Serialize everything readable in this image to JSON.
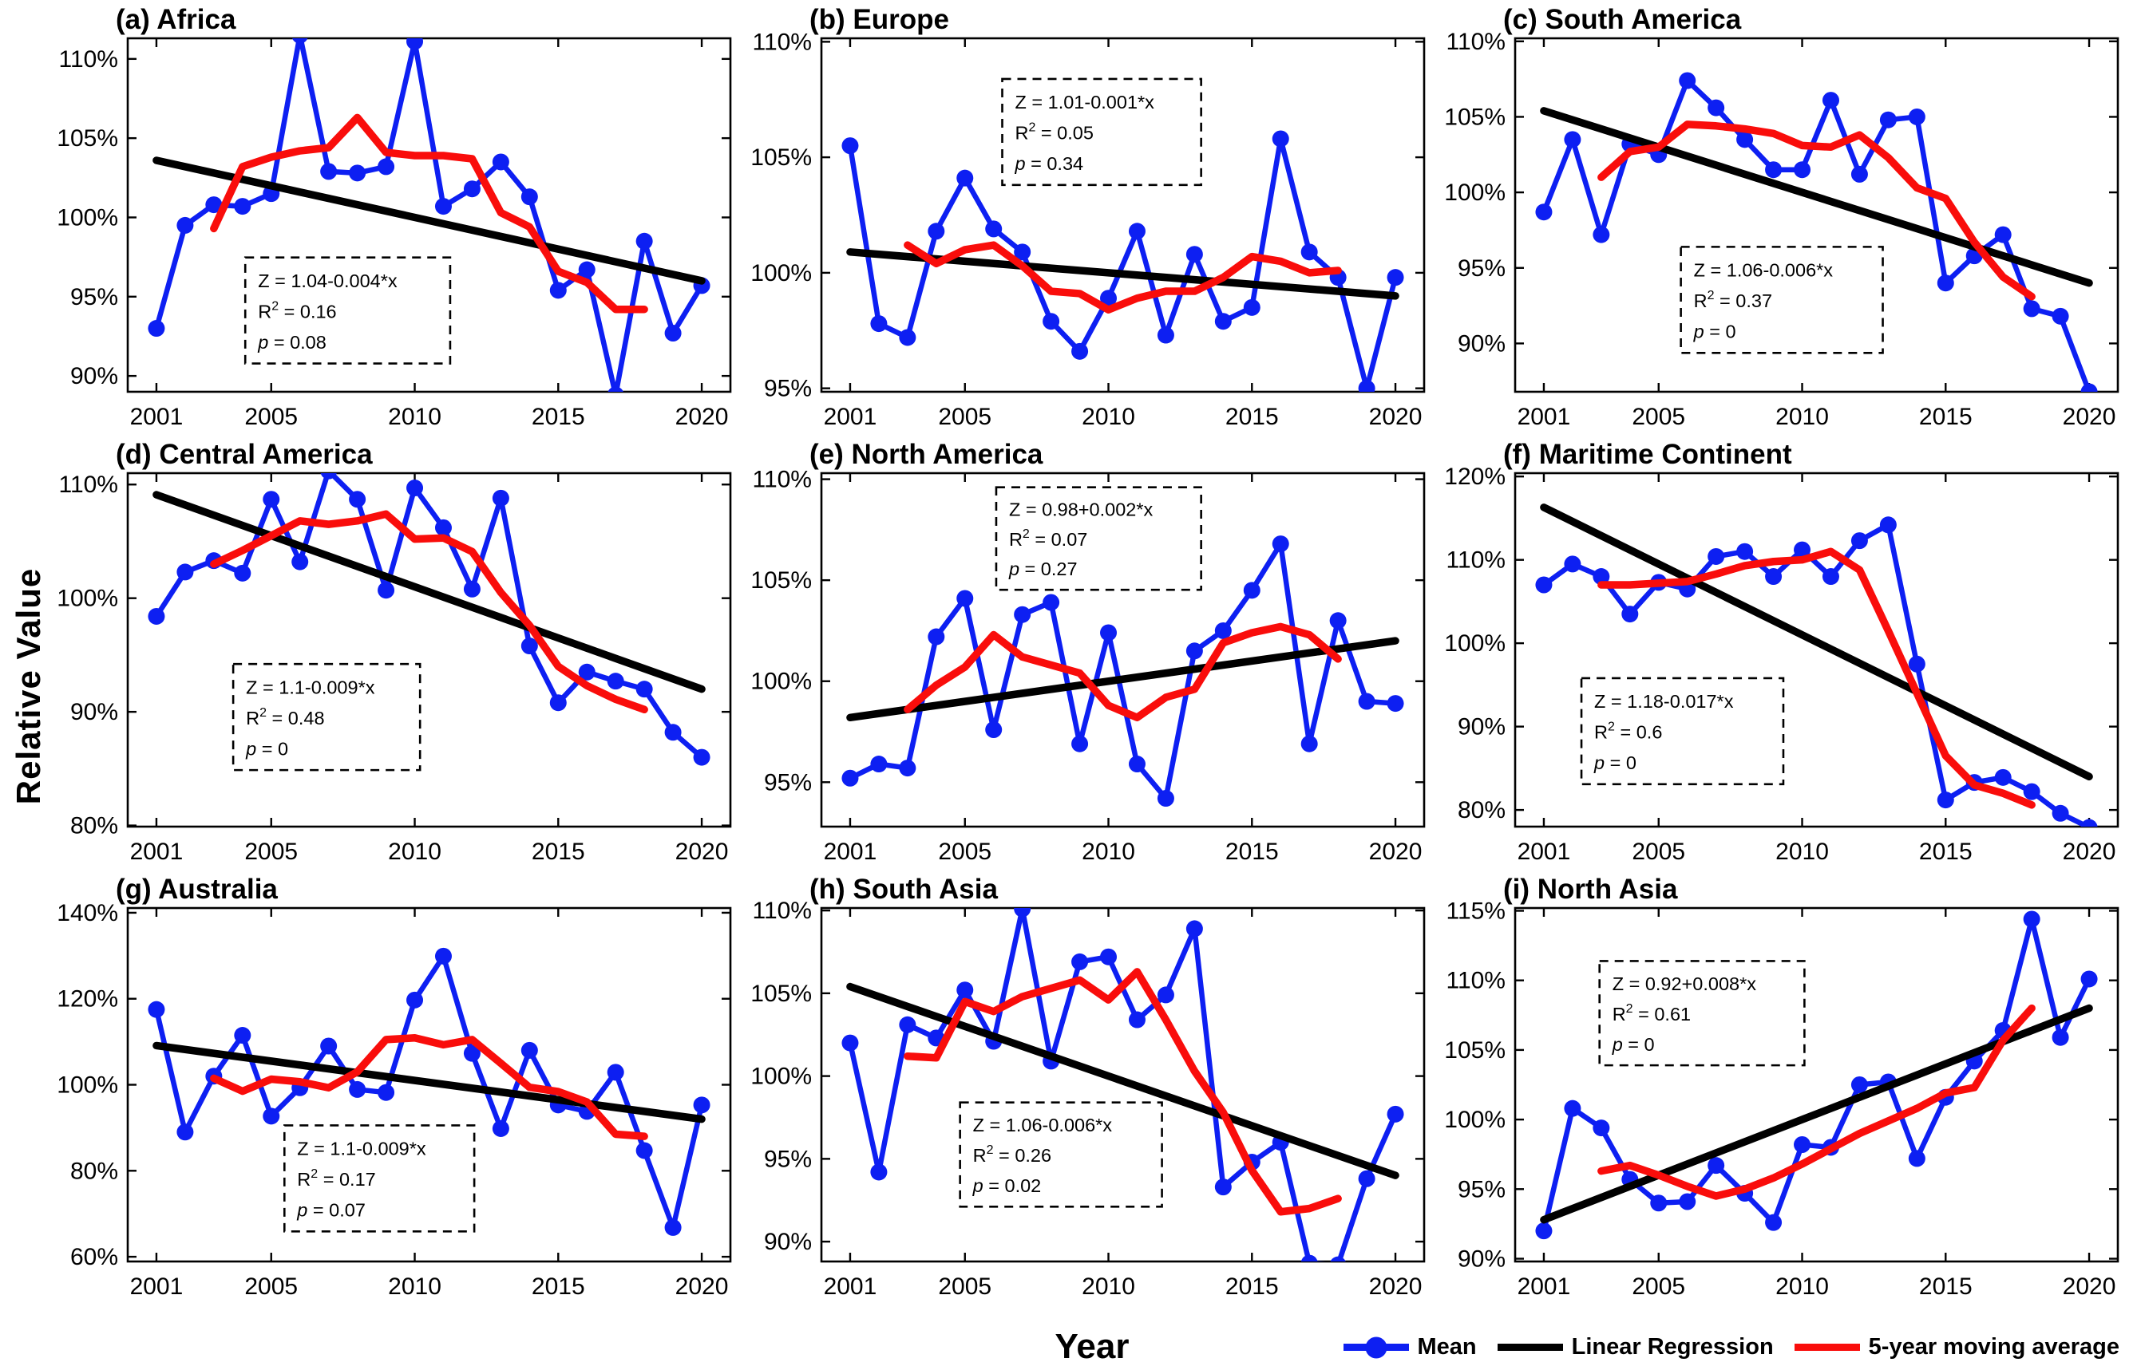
{
  "figure": {
    "ylabel": "Relative Value",
    "xlabel": "Year",
    "colors": {
      "mean": "#0d1ff2",
      "regression": "#000000",
      "moving_average": "#f90d0b"
    },
    "legend": [
      {
        "name": "mean",
        "label": "Mean"
      },
      {
        "name": "linear-regression",
        "label": "Linear Regression"
      },
      {
        "name": "moving-average",
        "label": "5-year moving average"
      }
    ]
  },
  "chart_data": {
    "type": "line",
    "x": [
      2001,
      2002,
      2003,
      2004,
      2005,
      2006,
      2007,
      2008,
      2009,
      2010,
      2011,
      2012,
      2013,
      2014,
      2015,
      2016,
      2017,
      2018,
      2019,
      2020
    ],
    "xticks": [
      2001,
      2005,
      2010,
      2015,
      2020
    ],
    "xlim": [
      2000,
      2021
    ],
    "ma_start_year": 2003,
    "grid": "off",
    "panels": [
      {
        "id": "a",
        "title": "(a) Africa",
        "ylim": [
          89.0,
          111.3
        ],
        "yticks": [
          90,
          95,
          100,
          105,
          110
        ],
        "mean": [
          93.0,
          99.5,
          100.8,
          100.7,
          101.5,
          111.5,
          102.9,
          102.8,
          103.2,
          111.1,
          100.7,
          101.8,
          103.5,
          101.3,
          95.4,
          96.7,
          88.8,
          98.5,
          92.7,
          95.7
        ],
        "moving_average": [
          99.3,
          103.2,
          103.8,
          104.2,
          104.4,
          106.3,
          104.1,
          103.9,
          103.9,
          103.7,
          100.3,
          99.4,
          96.6,
          95.9,
          94.2,
          94.2
        ],
        "regression": {
          "intercept": 1.04,
          "slope": -0.004
        },
        "annotation": {
          "equation": "Z = 1.04-0.004*x",
          "r2": "0.16",
          "p": "0.08",
          "box": {
            "left_pct": 19.5,
            "top_pct": 62,
            "width_pct": 34,
            "height_pct": 30
          }
        }
      },
      {
        "id": "b",
        "title": "(b) Europe",
        "ylim": [
          94.85,
          110.15
        ],
        "yticks": [
          95,
          100,
          105,
          110
        ],
        "mean": [
          105.5,
          97.8,
          97.2,
          101.8,
          104.1,
          101.9,
          100.9,
          97.9,
          96.6,
          98.9,
          101.8,
          97.3,
          100.8,
          97.9,
          98.5,
          105.8,
          100.9,
          99.8,
          95.0,
          99.8
        ],
        "moving_average": [
          101.2,
          100.4,
          101.0,
          101.2,
          100.3,
          99.2,
          99.1,
          98.4,
          98.9,
          99.2,
          99.2,
          99.8,
          100.7,
          100.5,
          100.0,
          100.1
        ],
        "regression": {
          "intercept": 1.01,
          "slope": -0.001
        },
        "annotation": {
          "equation": "Z = 1.01-0.001*x",
          "r2": "0.05",
          "p": "0.34",
          "box": {
            "left_pct": 30,
            "top_pct": 11.5,
            "width_pct": 33,
            "height_pct": 30
          }
        }
      },
      {
        "id": "c",
        "title": "(c) South America",
        "ylim": [
          86.8,
          110.2
        ],
        "yticks": [
          90,
          95,
          100,
          105,
          110
        ],
        "mean": [
          98.7,
          103.5,
          97.2,
          103.2,
          102.5,
          107.4,
          105.6,
          103.5,
          101.5,
          101.5,
          106.1,
          101.2,
          104.8,
          105.0,
          94.0,
          95.8,
          97.2,
          92.3,
          91.8,
          86.8
        ],
        "moving_average": [
          101.0,
          102.7,
          103.0,
          104.5,
          104.4,
          104.2,
          103.9,
          103.1,
          103.0,
          103.8,
          102.3,
          100.3,
          99.6,
          96.7,
          94.4,
          93.1
        ],
        "regression": {
          "intercept": 1.06,
          "slope": -0.006
        },
        "annotation": {
          "equation": "Z = 1.06-0.006*x",
          "r2": "0.37",
          "p": "0",
          "box": {
            "left_pct": 27.5,
            "top_pct": 59,
            "width_pct": 33.5,
            "height_pct": 30
          }
        }
      },
      {
        "id": "d",
        "title": "(d) Central America",
        "ylim": [
          79.9,
          111.0
        ],
        "yticks": [
          80,
          90,
          100,
          110
        ],
        "mean": [
          98.4,
          102.3,
          103.3,
          102.2,
          108.7,
          103.2,
          111.2,
          108.7,
          100.7,
          109.7,
          106.2,
          100.8,
          108.8,
          95.8,
          90.8,
          93.5,
          92.7,
          92.0,
          88.2,
          86.0
        ],
        "moving_average": [
          103.0,
          104.2,
          105.5,
          106.8,
          106.5,
          106.8,
          107.4,
          105.2,
          105.3,
          104.1,
          100.5,
          97.6,
          94.0,
          92.3,
          91.1,
          90.2
        ],
        "regression": {
          "intercept": 1.1,
          "slope": -0.009
        },
        "annotation": {
          "equation": "Z = 1.1-0.009*x",
          "r2": "0.48",
          "p": "0",
          "box": {
            "left_pct": 17.5,
            "top_pct": 54,
            "width_pct": 31,
            "height_pct": 30
          }
        }
      },
      {
        "id": "e",
        "title": "(e) North America",
        "ylim": [
          92.8,
          110.3
        ],
        "yticks": [
          95,
          100,
          105,
          110
        ],
        "mean": [
          95.2,
          95.9,
          95.7,
          102.2,
          104.1,
          97.6,
          103.3,
          103.9,
          96.9,
          102.4,
          95.9,
          94.2,
          101.5,
          102.5,
          104.5,
          106.8,
          96.9,
          103.0,
          99.0,
          98.9
        ],
        "moving_average": [
          98.6,
          99.8,
          100.7,
          102.3,
          101.2,
          100.8,
          100.4,
          98.8,
          98.2,
          99.2,
          99.6,
          101.9,
          102.4,
          102.7,
          102.3,
          101.1
        ],
        "regression": {
          "intercept": 0.98,
          "slope": 0.002
        },
        "annotation": {
          "equation": "Z = 0.98+0.002*x",
          "r2": "0.07",
          "p": "0.27",
          "box": {
            "left_pct": 29,
            "top_pct": 4,
            "width_pct": 34,
            "height_pct": 29
          }
        }
      },
      {
        "id": "f",
        "title": "(f) Maritime Continent",
        "ylim": [
          78.0,
          120.4
        ],
        "yticks": [
          80,
          90,
          100,
          110,
          120
        ],
        "mean": [
          107.0,
          109.5,
          108.0,
          103.5,
          107.3,
          106.5,
          110.4,
          111.0,
          108.0,
          111.2,
          108.0,
          112.3,
          114.2,
          97.5,
          81.2,
          83.3,
          83.9,
          82.2,
          79.6,
          77.9
        ],
        "moving_average": [
          107.0,
          107.0,
          107.2,
          107.4,
          108.3,
          109.3,
          109.8,
          110.0,
          111.0,
          108.8,
          101.5,
          94.0,
          86.5,
          83.0,
          82.0,
          80.6
        ],
        "regression": {
          "intercept": 1.18,
          "slope": -0.017
        },
        "annotation": {
          "equation": "Z = 1.18-0.017*x",
          "r2": "0.6",
          "p": "0",
          "box": {
            "left_pct": 11,
            "top_pct": 58,
            "width_pct": 33.5,
            "height_pct": 30
          }
        }
      },
      {
        "id": "g",
        "title": "(g) Australia",
        "ylim": [
          58.9,
          141.1
        ],
        "yticks": [
          60,
          80,
          100,
          120,
          140
        ],
        "mean": [
          117.5,
          89.0,
          102.0,
          111.5,
          92.7,
          99.3,
          109.0,
          98.9,
          98.2,
          119.7,
          129.9,
          107.3,
          89.8,
          108.0,
          95.3,
          93.8,
          102.9,
          84.7,
          66.8,
          95.3
        ],
        "moving_average": [
          101.5,
          98.5,
          101.3,
          100.7,
          99.3,
          103.0,
          110.5,
          110.9,
          109.3,
          110.5,
          105.0,
          99.4,
          98.4,
          96.0,
          88.5,
          88.0
        ],
        "regression": {
          "intercept": 1.1,
          "slope": -0.009
        },
        "annotation": {
          "equation": "Z = 1.1-0.009*x",
          "r2": "0.17",
          "p": "0.07",
          "box": {
            "left_pct": 26,
            "top_pct": 61.5,
            "width_pct": 31.5,
            "height_pct": 30
          }
        }
      },
      {
        "id": "h",
        "title": "(h) South Asia",
        "ylim": [
          88.8,
          110.15
        ],
        "yticks": [
          90,
          95,
          100,
          105,
          110
        ],
        "mean": [
          102.0,
          94.2,
          103.1,
          102.3,
          105.2,
          102.1,
          110.1,
          100.9,
          106.9,
          107.2,
          103.4,
          104.9,
          108.9,
          93.3,
          94.8,
          96.0,
          88.7,
          88.6,
          93.8,
          97.7
        ],
        "moving_average": [
          101.2,
          101.1,
          104.5,
          103.9,
          104.8,
          105.3,
          105.8,
          104.6,
          106.3,
          103.4,
          100.3,
          97.8,
          94.3,
          91.8,
          92.0,
          92.6
        ],
        "regression": {
          "intercept": 1.06,
          "slope": -0.006
        },
        "annotation": {
          "equation": "Z = 1.06-0.006*x",
          "r2": "0.26",
          "p": "0.02",
          "box": {
            "left_pct": 23,
            "top_pct": 55,
            "width_pct": 33.5,
            "height_pct": 29.5
          }
        }
      },
      {
        "id": "i",
        "title": "(i) North Asia",
        "ylim": [
          89.8,
          115.2
        ],
        "yticks": [
          90,
          95,
          100,
          105,
          110,
          115
        ],
        "mean": [
          92.0,
          100.8,
          99.4,
          95.7,
          94.0,
          94.1,
          96.7,
          94.7,
          92.6,
          98.2,
          98.0,
          102.5,
          102.7,
          97.2,
          101.6,
          104.2,
          106.4,
          114.4,
          105.9,
          110.1
        ],
        "moving_average": [
          96.3,
          96.7,
          96.0,
          95.2,
          94.5,
          95.0,
          95.8,
          96.8,
          97.9,
          99.0,
          99.9,
          100.8,
          101.9,
          102.3,
          105.7,
          108.0
        ],
        "regression": {
          "intercept": 0.92,
          "slope": 0.008
        },
        "annotation": {
          "equation": "Z = 0.92+0.008*x",
          "r2": "0.61",
          "p": "0",
          "box": {
            "left_pct": 14,
            "top_pct": 15,
            "width_pct": 34,
            "height_pct": 29.5
          }
        }
      }
    ]
  }
}
